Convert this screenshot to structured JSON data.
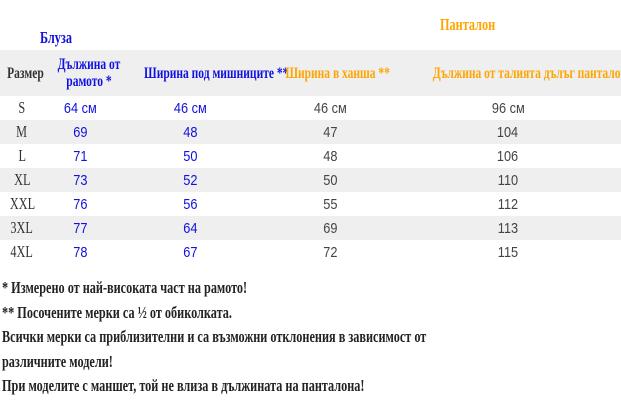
{
  "groups": {
    "blouse": "Блуза",
    "pants": "Панталон"
  },
  "headers": [
    "Размер",
    "Дължина от рамото *",
    "Ширина под мишниците **",
    "Ширина в ханша **",
    "Дължина от талията дълъг панталон"
  ],
  "rows": [
    [
      "S",
      "64 см",
      "46 см",
      "46 см",
      "96 см"
    ],
    [
      "M",
      "69",
      "48",
      "47",
      "104"
    ],
    [
      "L",
      "71",
      "50",
      "48",
      "106"
    ],
    [
      "XL",
      "73",
      "52",
      "50",
      "110"
    ],
    [
      "XXL",
      "76",
      "56",
      "55",
      "112"
    ],
    [
      "3XL",
      "77",
      "64",
      "69",
      "113"
    ],
    [
      "4XL",
      "78",
      "67",
      "72",
      "115"
    ]
  ],
  "notes": [
    "* Измерено от най-високата част на рамото!",
    "** Посочените мерки са ½ от обиколката.",
    "Всички мерки са приблизителни и са възможни отклонения в зависимост от",
    "различните  модели!",
    "При моделите с маншет, той не влиза в дължината на панталона!"
  ],
  "colors": {
    "blouse": "#1010e0",
    "pants": "#ffa500",
    "text": "#333333",
    "band": "#efefef"
  }
}
